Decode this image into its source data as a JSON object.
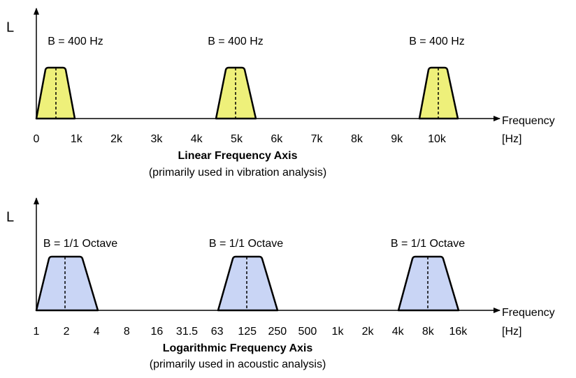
{
  "panels": [
    {
      "y_label": "L",
      "axis_label": "Frequency",
      "unit_label": "[Hz]",
      "ticks": [
        "0",
        "1k",
        "2k",
        "3k",
        "4k",
        "5k",
        "6k",
        "7k",
        "8k",
        "9k",
        "10k"
      ],
      "bands": [
        "B = 400 Hz",
        "B = 400 Hz",
        "B = 400 Hz"
      ],
      "title": "Linear Frequency Axis",
      "subtitle": "(primarily used in vibration analysis)"
    },
    {
      "y_label": "L",
      "axis_label": "Frequency",
      "unit_label": "[Hz]",
      "ticks": [
        "1",
        "2",
        "4",
        "8",
        "16",
        "31.5",
        "63",
        "125",
        "250",
        "500",
        "1k",
        "2k",
        "4k",
        "8k",
        "16k"
      ],
      "bands": [
        "B = 1/1 Octave",
        "B = 1/1 Octave",
        "B = 1/1 Octave"
      ],
      "title": "Logarithmic Frequency Axis",
      "subtitle": "(primarily used in acoustic analysis)"
    }
  ]
}
